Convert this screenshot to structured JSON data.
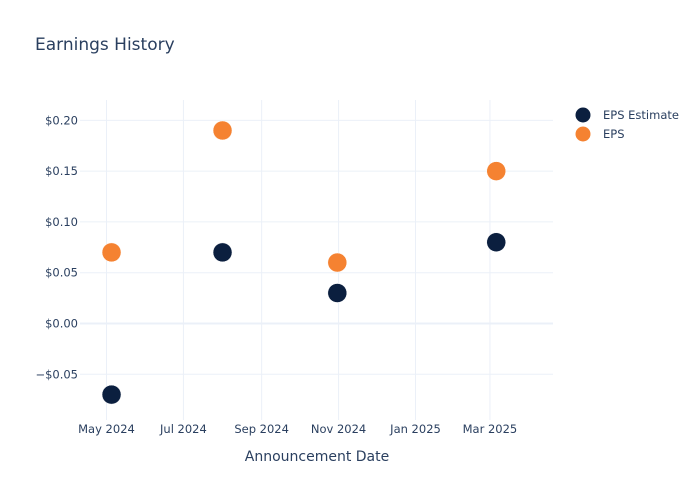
{
  "chart_data": {
    "type": "scatter",
    "title": "Earnings History",
    "xlabel": "Announcement Date",
    "ylabel": "",
    "x_axis_type": "date",
    "xlim": [
      "2024-04-10",
      "2025-04-20"
    ],
    "ylim": [
      -0.095,
      0.22
    ],
    "x_ticks": [
      {
        "date": "2024-05-01",
        "label": "May 2024"
      },
      {
        "date": "2024-07-01",
        "label": "Jul 2024"
      },
      {
        "date": "2024-09-01",
        "label": "Sep 2024"
      },
      {
        "date": "2024-11-01",
        "label": "Nov 2024"
      },
      {
        "date": "2025-01-01",
        "label": "Jan 2025"
      },
      {
        "date": "2025-03-01",
        "label": "Mar 2025"
      }
    ],
    "y_ticks": [
      {
        "value": -0.05,
        "label": "−$0.05"
      },
      {
        "value": 0,
        "label": "$0.00"
      },
      {
        "value": 0.05,
        "label": "$0.05"
      },
      {
        "value": 0.1,
        "label": "$0.10"
      },
      {
        "value": 0.15,
        "label": "$0.15"
      },
      {
        "value": 0.2,
        "label": "$0.20"
      }
    ],
    "grid": true,
    "legend_position": "top-right",
    "series": [
      {
        "name": "EPS Estimate",
        "color": "#0b1f3f",
        "x": [
          "2024-05-05",
          "2024-08-01",
          "2024-10-31",
          "2025-03-06"
        ],
        "y": [
          -0.07,
          0.07,
          0.03,
          0.08
        ]
      },
      {
        "name": "EPS",
        "color": "#f58231",
        "x": [
          "2024-05-05",
          "2024-08-01",
          "2024-10-31",
          "2025-03-06"
        ],
        "y": [
          0.07,
          0.19,
          0.06,
          0.15
        ]
      }
    ]
  }
}
